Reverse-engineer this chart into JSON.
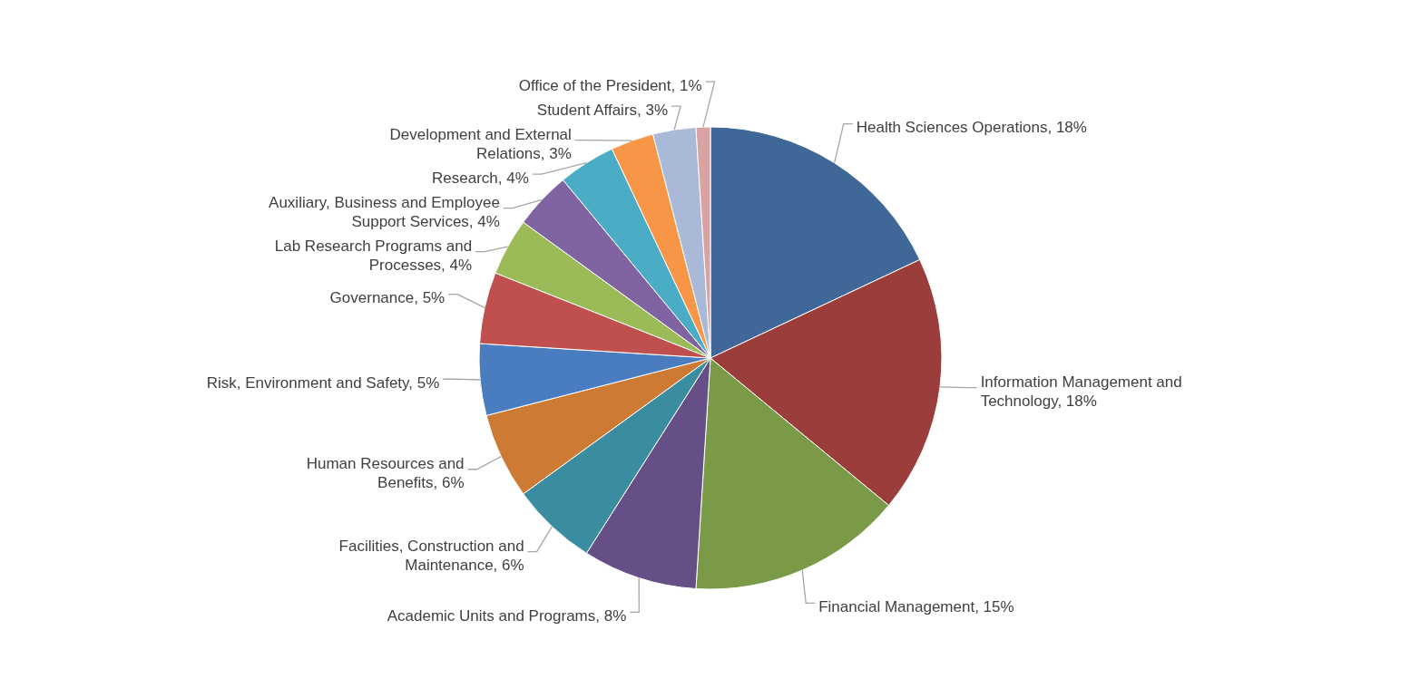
{
  "chart_data": {
    "type": "pie",
    "categories": [
      "Health Sciences Operations",
      "Information Management and Technology",
      "Financial Management",
      "Academic Units and Programs",
      "Facilities, Construction and Maintenance",
      "Human Resources and Benefits",
      "Risk, Environment and Safety",
      "Governance",
      "Lab Research Programs and Processes",
      "Auxiliary, Business and Employee Support Services",
      "Research",
      "Development and External Relations",
      "Student Affairs",
      "Office of the President"
    ],
    "values": [
      18,
      18,
      15,
      8,
      6,
      6,
      5,
      5,
      4,
      4,
      4,
      3,
      3,
      1
    ],
    "value_labels": [
      "18%",
      "18%",
      "15%",
      "8%",
      "6%",
      "6%",
      "5%",
      "5%",
      "4%",
      "4%",
      "4%",
      "3%",
      "3%",
      "1%"
    ],
    "colors": [
      "#3f6797",
      "#9a3d3b",
      "#7b9a47",
      "#664f86",
      "#3a8ca0",
      "#cc7a34",
      "#4a7dc0",
      "#c0504d",
      "#9bbb59",
      "#8064a2",
      "#4bacc6",
      "#f79646",
      "#a9b9d7",
      "#d9a3a3"
    ]
  }
}
